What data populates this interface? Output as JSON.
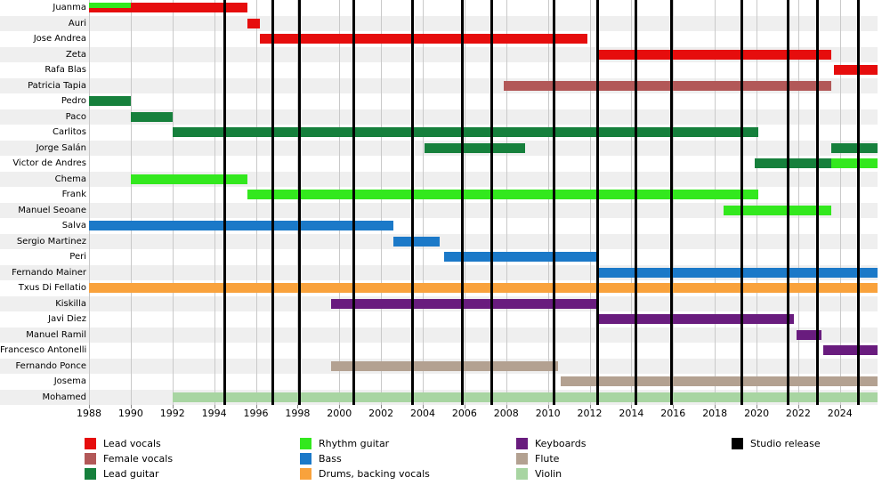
{
  "colors": {
    "lead_vocals": "#e60d0d",
    "female_vocals": "#b25858",
    "lead_guitar": "#16803c",
    "rhythm_guitar": "#33e81e",
    "bass": "#1b79c8",
    "drums": "#f9a23c",
    "keyboards": "#691c7e",
    "flute": "#b3a191",
    "violin": "#a8d5a2",
    "studio_release": "#000000"
  },
  "legend": {
    "groups": [
      [
        {
          "key": "lead_vocals",
          "label": "Lead vocals"
        },
        {
          "key": "female_vocals",
          "label": "Female vocals"
        },
        {
          "key": "lead_guitar",
          "label": "Lead guitar"
        }
      ],
      [
        {
          "key": "rhythm_guitar",
          "label": "Rhythm guitar"
        },
        {
          "key": "bass",
          "label": "Bass"
        },
        {
          "key": "drums",
          "label": "Drums, backing vocals"
        }
      ],
      [
        {
          "key": "keyboards",
          "label": "Keyboards"
        },
        {
          "key": "flute",
          "label": "Flute"
        },
        {
          "key": "violin",
          "label": "Violin"
        }
      ],
      [
        {
          "key": "studio_release",
          "label": "Studio release"
        }
      ]
    ]
  },
  "chart_data": {
    "type": "timeline",
    "x_axis": {
      "start": 1988,
      "end": 2025.8,
      "ticks": [
        1988,
        1990,
        1992,
        1994,
        1996,
        1998,
        2000,
        2002,
        2004,
        2006,
        2008,
        2010,
        2012,
        2014,
        2016,
        2018,
        2020,
        2022,
        2024
      ]
    },
    "members": [
      {
        "name": "Juanma",
        "segments": [
          {
            "role": "lead_vocals",
            "start": 1988,
            "end": 1995.6
          },
          {
            "role": "rhythm_guitar",
            "start": 1988,
            "end": 1990,
            "half": true
          }
        ]
      },
      {
        "name": "Auri",
        "segments": [
          {
            "role": "lead_vocals",
            "start": 1995.6,
            "end": 1996.2
          }
        ]
      },
      {
        "name": "Jose Andrea",
        "segments": [
          {
            "role": "lead_vocals",
            "start": 1996.2,
            "end": 2011.9
          }
        ]
      },
      {
        "name": "Zeta",
        "segments": [
          {
            "role": "lead_vocals",
            "start": 2012.4,
            "end": 2023.6
          }
        ]
      },
      {
        "name": "Rafa Blas",
        "segments": [
          {
            "role": "lead_vocals",
            "start": 2023.7,
            "end": 2025.8
          }
        ]
      },
      {
        "name": "Patricia Tapia",
        "segments": [
          {
            "role": "female_vocals",
            "start": 2007.9,
            "end": 2023.6
          }
        ]
      },
      {
        "name": "Pedro",
        "segments": [
          {
            "role": "lead_guitar",
            "start": 1988,
            "end": 1990
          }
        ]
      },
      {
        "name": "Paco",
        "segments": [
          {
            "role": "lead_guitar",
            "start": 1990,
            "end": 1992
          }
        ]
      },
      {
        "name": "Carlitos",
        "segments": [
          {
            "role": "lead_guitar",
            "start": 1992,
            "end": 2020.1
          }
        ]
      },
      {
        "name": "Jorge Salán",
        "segments": [
          {
            "role": "lead_guitar",
            "start": 2004.1,
            "end": 2008.9
          },
          {
            "role": "lead_guitar",
            "start": 2023.6,
            "end": 2025.8
          }
        ]
      },
      {
        "name": "Victor de Andres",
        "segments": [
          {
            "role": "lead_guitar",
            "start": 2019.9,
            "end": 2023.6
          },
          {
            "role": "rhythm_guitar",
            "start": 2023.6,
            "end": 2025.8
          }
        ]
      },
      {
        "name": "Chema",
        "segments": [
          {
            "role": "rhythm_guitar",
            "start": 1990,
            "end": 1995.6
          }
        ]
      },
      {
        "name": "Frank",
        "segments": [
          {
            "role": "rhythm_guitar",
            "start": 1995.6,
            "end": 2020.1
          }
        ]
      },
      {
        "name": "Manuel Seoane",
        "segments": [
          {
            "role": "rhythm_guitar",
            "start": 2018.4,
            "end": 2023.6
          }
        ]
      },
      {
        "name": "Salva",
        "segments": [
          {
            "role": "bass",
            "start": 1988,
            "end": 2002.6
          }
        ]
      },
      {
        "name": "Sergio Martinez",
        "segments": [
          {
            "role": "bass",
            "start": 2002.6,
            "end": 2004.8
          }
        ]
      },
      {
        "name": "Peri",
        "segments": [
          {
            "role": "bass",
            "start": 2005.0,
            "end": 2012.4
          }
        ]
      },
      {
        "name": "Fernando Mainer",
        "segments": [
          {
            "role": "bass",
            "start": 2012.4,
            "end": 2025.8
          }
        ]
      },
      {
        "name": "Txus Di Fellatio",
        "segments": [
          {
            "role": "drums",
            "start": 1988,
            "end": 2025.8
          }
        ]
      },
      {
        "name": "Kiskilla",
        "segments": [
          {
            "role": "keyboards",
            "start": 1999.6,
            "end": 2012.4
          }
        ]
      },
      {
        "name": "Javi Diez",
        "segments": [
          {
            "role": "keyboards",
            "start": 2012.4,
            "end": 2021.8
          }
        ]
      },
      {
        "name": "Manuel Ramil",
        "segments": [
          {
            "role": "keyboards",
            "start": 2021.9,
            "end": 2023.1
          }
        ]
      },
      {
        "name": "Francesco Antonelli",
        "segments": [
          {
            "role": "keyboards",
            "start": 2023.2,
            "end": 2025.8
          }
        ]
      },
      {
        "name": "Fernando Ponce",
        "segments": [
          {
            "role": "flute",
            "start": 1999.6,
            "end": 2010.5
          }
        ]
      },
      {
        "name": "Josema",
        "segments": [
          {
            "role": "flute",
            "start": 2010.6,
            "end": 2025.8
          }
        ]
      },
      {
        "name": "Mohamed",
        "segments": [
          {
            "role": "violin",
            "start": 1992,
            "end": 2025.8
          }
        ]
      }
    ],
    "studio_releases": [
      1994.5,
      1996.8,
      1998.1,
      2000.7,
      2003.5,
      2005.9,
      2007.3,
      2010.3,
      2012.4,
      2014.2,
      2015.9,
      2019.3,
      2021.5,
      2022.9,
      2024.9
    ]
  }
}
